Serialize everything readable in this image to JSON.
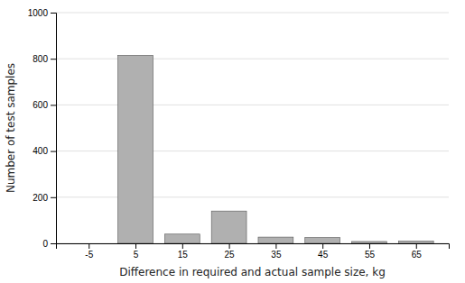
{
  "chart_data": {
    "type": "bar",
    "x": [
      -5,
      5,
      15,
      25,
      35,
      45,
      55,
      65
    ],
    "values": [
      0,
      815,
      40,
      140,
      27,
      25,
      8,
      10
    ],
    "color": "#b0b0b0",
    "xlabel": "Difference in required and actual sample size, kg",
    "ylabel": "Number of test samples",
    "xlim": [
      -12,
      72
    ],
    "xticks": [
      -5,
      5,
      15,
      25,
      35,
      45,
      55,
      65
    ],
    "ylim": [
      0,
      1000
    ],
    "yticks": [
      0,
      200,
      400,
      600,
      800,
      1000
    ],
    "grid": true
  }
}
